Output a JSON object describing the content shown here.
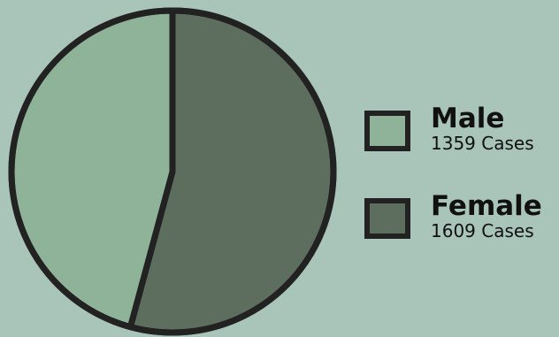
{
  "chart_data": {
    "type": "pie",
    "title": "",
    "slices": [
      {
        "label": "Male",
        "value": 1359,
        "value_label": "1359 Cases",
        "color": "#8fb399"
      },
      {
        "label": "Female",
        "value": 1609,
        "value_label": "1609 Cases",
        "color": "#5d6e5e"
      }
    ],
    "legend_position": "right",
    "outline_color": "#222222",
    "background_color": "#a9c4b9"
  }
}
